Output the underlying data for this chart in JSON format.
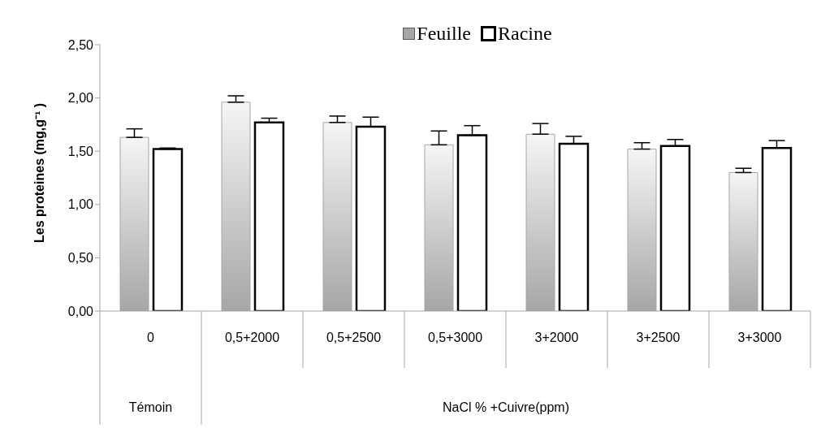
{
  "chart_data": {
    "type": "bar",
    "ylabel": "Les proteines (mg,g⁻¹ )",
    "categories": [
      "0",
      "0,5+2000",
      "0,5+2500",
      "0,5+3000",
      "3+2000",
      "3+2500",
      "3+3000"
    ],
    "series": [
      {
        "name": "Feuille",
        "color": "#a6a6a6",
        "values": [
          1.63,
          1.96,
          1.77,
          1.56,
          1.66,
          1.52,
          1.3
        ],
        "errors": [
          [
            1.63,
            1.71
          ],
          [
            1.96,
            2.02
          ],
          [
            1.77,
            1.83
          ],
          [
            1.56,
            1.69
          ],
          [
            1.66,
            1.76
          ],
          [
            1.52,
            1.58
          ],
          [
            1.3,
            1.34
          ]
        ]
      },
      {
        "name": "Racine",
        "color": "#ffffff",
        "values": [
          1.52,
          1.77,
          1.73,
          1.65,
          1.57,
          1.55,
          1.53
        ],
        "errors": [
          [
            1.52,
            1.53
          ],
          [
            1.77,
            1.81
          ],
          [
            1.73,
            1.82
          ],
          [
            1.65,
            1.74
          ],
          [
            1.57,
            1.64
          ],
          [
            1.55,
            1.61
          ],
          [
            1.53,
            1.6
          ]
        ]
      }
    ],
    "ylim": [
      0,
      2.5
    ],
    "yticks": [
      {
        "value": 0,
        "label": "0,00"
      },
      {
        "value": 0.5,
        "label": "0,50"
      },
      {
        "value": 1,
        "label": "1,00"
      },
      {
        "value": 1.5,
        "label": "1,50"
      },
      {
        "value": 2,
        "label": "2,00"
      },
      {
        "value": 2.5,
        "label": "2,50"
      }
    ],
    "grid": false,
    "legend": "top",
    "annotations": [
      "Témoin",
      "NaCl % +Cuivre(ppm)"
    ]
  }
}
